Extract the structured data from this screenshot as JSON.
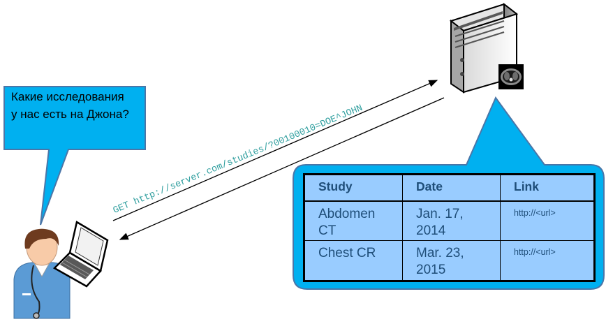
{
  "question": {
    "line1": "Какие исследования",
    "line2": "у нас есть на Джона?"
  },
  "request": {
    "text": "GET http://server.com/studies/?00100010=DOE^JOHN"
  },
  "table": {
    "headers": [
      "Study",
      "Date",
      "Link"
    ],
    "rows": [
      {
        "study_line1": "Abdomen",
        "study_line2": "CT",
        "date_line1": "Jan. 17,",
        "date_line2": "2014",
        "link": "http://<url>"
      },
      {
        "study_line1": "Chest CR",
        "study_line2": "",
        "date_line1": "Mar. 23,",
        "date_line2": "2015",
        "link": "http://<url>"
      }
    ]
  },
  "colors": {
    "question_bubble": "#00b0f0",
    "result_bubble": "#99ccff",
    "request_text": "#2e9e9e"
  },
  "icons": [
    "doctor-icon",
    "laptop-icon",
    "server-icon",
    "ct-scan-icon"
  ]
}
